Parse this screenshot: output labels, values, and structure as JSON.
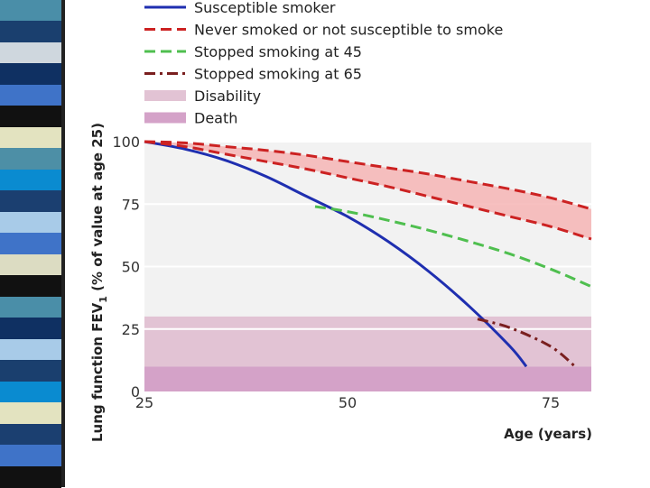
{
  "slide": {
    "stripe_colors": [
      "#4a8ea8",
      "#1a3f6e",
      "#cfd7de",
      "#0f3062",
      "#3f73c8",
      "#111111",
      "#e3e3c0",
      "#4d8fa6",
      "#0a8bd0",
      "#1b3f70",
      "#a8cbe8",
      "#3f73c8",
      "#dcdcc2",
      "#111111",
      "#4a8ea8",
      "#0f3062",
      "#a8cbe8",
      "#1a3f6e",
      "#0a8bd0",
      "#e3e3c0",
      "#1b3f70",
      "#3f73c8",
      "#111111"
    ]
  },
  "chart_data": {
    "type": "line",
    "title": "",
    "xlabel": "Age (years)",
    "ylabel_main": "Lung function FEV",
    "ylabel_sub": "1",
    "ylabel_rest": " (% of value at age 25)",
    "xlim": [
      25,
      80
    ],
    "ylim": [
      0,
      100
    ],
    "x_ticks": [
      25,
      50,
      75
    ],
    "y_ticks": [
      0,
      25,
      50,
      75,
      100
    ],
    "bands": [
      {
        "name": "Disability",
        "y0": 10,
        "y1": 30,
        "color": "#e2c3d4"
      },
      {
        "name": "Death",
        "y0": 0,
        "y1": 10,
        "color": "#d4a2c8"
      }
    ],
    "shaded_range": {
      "color": "#f6b5b5",
      "upper_series": 1,
      "lower_series": 2
    },
    "series": [
      {
        "name": "Susceptible smoker",
        "legend": true,
        "color": "#1f2fb0",
        "dash": "solid",
        "x": [
          25,
          30,
          35,
          40,
          45,
          50,
          55,
          60,
          65,
          70,
          72
        ],
        "y": [
          100,
          97,
          92.5,
          86,
          78,
          70,
          60,
          48,
          34,
          18,
          10
        ]
      },
      {
        "name": "Never smoked or not susceptible to smoke",
        "legend": true,
        "color": "#cc2222",
        "dash": "dashed",
        "x": [
          25,
          30,
          35,
          40,
          45,
          50,
          55,
          60,
          65,
          70,
          75,
          80
        ],
        "y": [
          100,
          99.5,
          98,
          96.5,
          94.5,
          92,
          89.5,
          87,
          84,
          81,
          77.5,
          73
        ]
      },
      {
        "name": "Never smoked (lower bound)",
        "legend": false,
        "color": "#cc2222",
        "dash": "dashed",
        "x": [
          25,
          30,
          35,
          40,
          45,
          50,
          55,
          60,
          65,
          70,
          75,
          80
        ],
        "y": [
          100,
          98,
          95,
          92,
          89,
          85.5,
          82,
          78,
          74,
          70,
          66,
          61
        ]
      },
      {
        "name": "Stopped smoking at 45",
        "legend": true,
        "color": "#4fbf4f",
        "dash": "dashed",
        "x": [
          46,
          50,
          55,
          60,
          65,
          70,
          75,
          80
        ],
        "y": [
          74,
          72,
          68.5,
          64.5,
          60,
          55,
          49,
          42
        ]
      },
      {
        "name": "Stopped smoking at 65",
        "legend": true,
        "color": "#7a1f1f",
        "dash": "dashdot",
        "x": [
          66,
          70,
          75,
          78
        ],
        "y": [
          29,
          25.5,
          18,
          10
        ]
      }
    ],
    "legend": [
      {
        "label": "Susceptible smoker",
        "kind": "line",
        "color": "#1f2fb0",
        "dash": "solid"
      },
      {
        "label": "Never smoked or not susceptible to smoke",
        "kind": "line",
        "color": "#cc2222",
        "dash": "dashed"
      },
      {
        "label": "Stopped smoking at 45",
        "kind": "line",
        "color": "#4fbf4f",
        "dash": "dashed"
      },
      {
        "label": "Stopped smoking at 65",
        "kind": "line",
        "color": "#7a1f1f",
        "dash": "dashdot"
      },
      {
        "label": "Disability",
        "kind": "box",
        "color": "#e2c3d4"
      },
      {
        "label": "Death",
        "kind": "box",
        "color": "#d4a2c8"
      }
    ]
  }
}
